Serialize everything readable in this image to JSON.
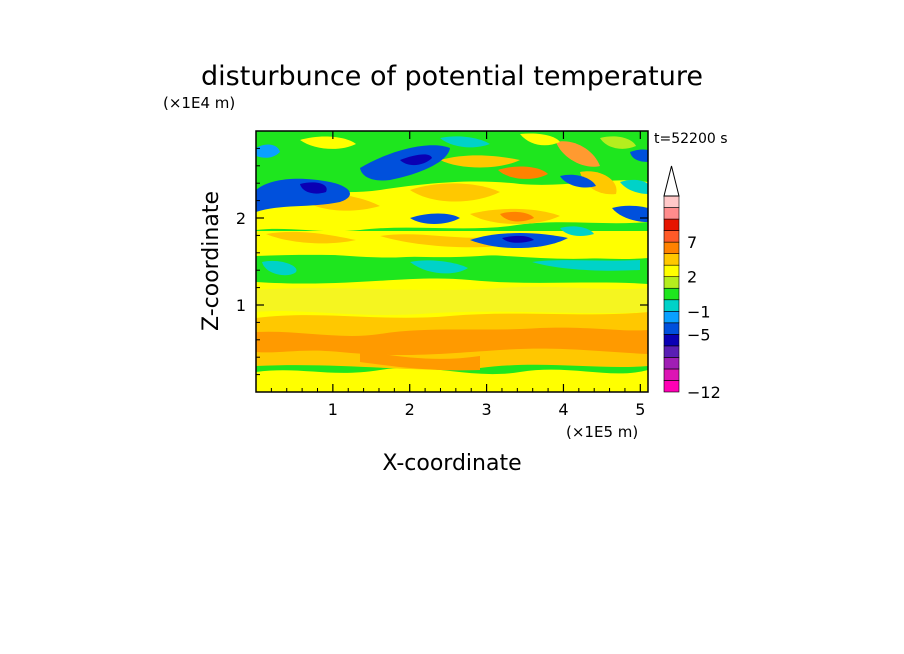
{
  "chart_data": {
    "type": "heatmap",
    "title": "disturbunce of potential temperature",
    "xlabel": "X-coordinate",
    "ylabel": "Z-coordinate",
    "x_unit": "(×1E5 m)",
    "y_unit": "(×1E4 m)",
    "time_label": "t=52200 s",
    "xlim": [
      0,
      5.1
    ],
    "ylim": [
      0,
      3.0
    ],
    "x_ticks": [
      1,
      2,
      3,
      4,
      5
    ],
    "y_ticks": [
      1,
      2
    ],
    "colorbar": {
      "levels": [
        -12,
        -11,
        -10,
        -9,
        -7,
        -5,
        -3,
        -1,
        0,
        1,
        2,
        4,
        6,
        7,
        9,
        11
      ],
      "colors": [
        "#ff00b4",
        "#dc14b4",
        "#a01eb4",
        "#5a1eb4",
        "#0a00b4",
        "#0050dc",
        "#0aa0ff",
        "#00d2c8",
        "#1ee61e",
        "#b4ee1e",
        "#ffff00",
        "#ffc800",
        "#ff8200",
        "#ff5a28",
        "#e61400",
        "#ff8c8c",
        "#ffc8c8"
      ],
      "tick_labels": [
        "7",
        "2",
        "−1",
        "−5",
        "−12"
      ],
      "extend": "max"
    },
    "layers": [
      {
        "z": [
          0.0,
          0.2
        ],
        "dominant": "green-yellow mix"
      },
      {
        "z": [
          0.2,
          0.8
        ],
        "dominant": "orange",
        "values_approx": [
          2,
          6
        ]
      },
      {
        "z": [
          0.8,
          1.2
        ],
        "dominant": "yellow",
        "values_approx": [
          0,
          2
        ]
      },
      {
        "z": [
          1.2,
          1.6
        ],
        "dominant": "green/cyan",
        "values_approx": [
          -1,
          0
        ]
      },
      {
        "z": [
          1.6,
          2.3
        ],
        "dominant": "yellow/orange with blue bands",
        "values_approx": [
          -5,
          6
        ]
      },
      {
        "z": [
          2.3,
          3.0
        ],
        "dominant": "blue/green with orange cells",
        "values_approx": [
          -7,
          7
        ]
      }
    ]
  }
}
